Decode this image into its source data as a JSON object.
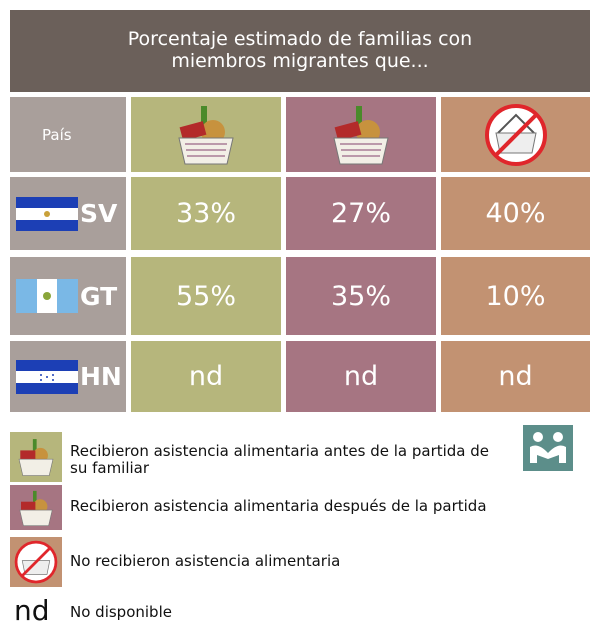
{
  "header": {
    "title_lines": [
      "Porcentaje estimado de familias con",
      "miembros migrantes que..."
    ]
  },
  "table": {
    "column_header": "País",
    "rows": [
      {
        "country": "SV",
        "cells": [
          "33%",
          "27%",
          "40%"
        ]
      },
      {
        "country": "GT",
        "cells": [
          "55%",
          "35%",
          "10%"
        ]
      },
      {
        "country": "HN",
        "cells": [
          "nd",
          "nd",
          "nd"
        ]
      }
    ]
  },
  "legend": [
    "Recibieron asistencia alimentaria antes de la partida de su familiar",
    "Recibieron asistencia alimentaria después de la partida",
    "No recibieron asistencia alimentaria"
  ],
  "nd_note": {
    "symbol": "nd",
    "text": "No disponible"
  }
}
